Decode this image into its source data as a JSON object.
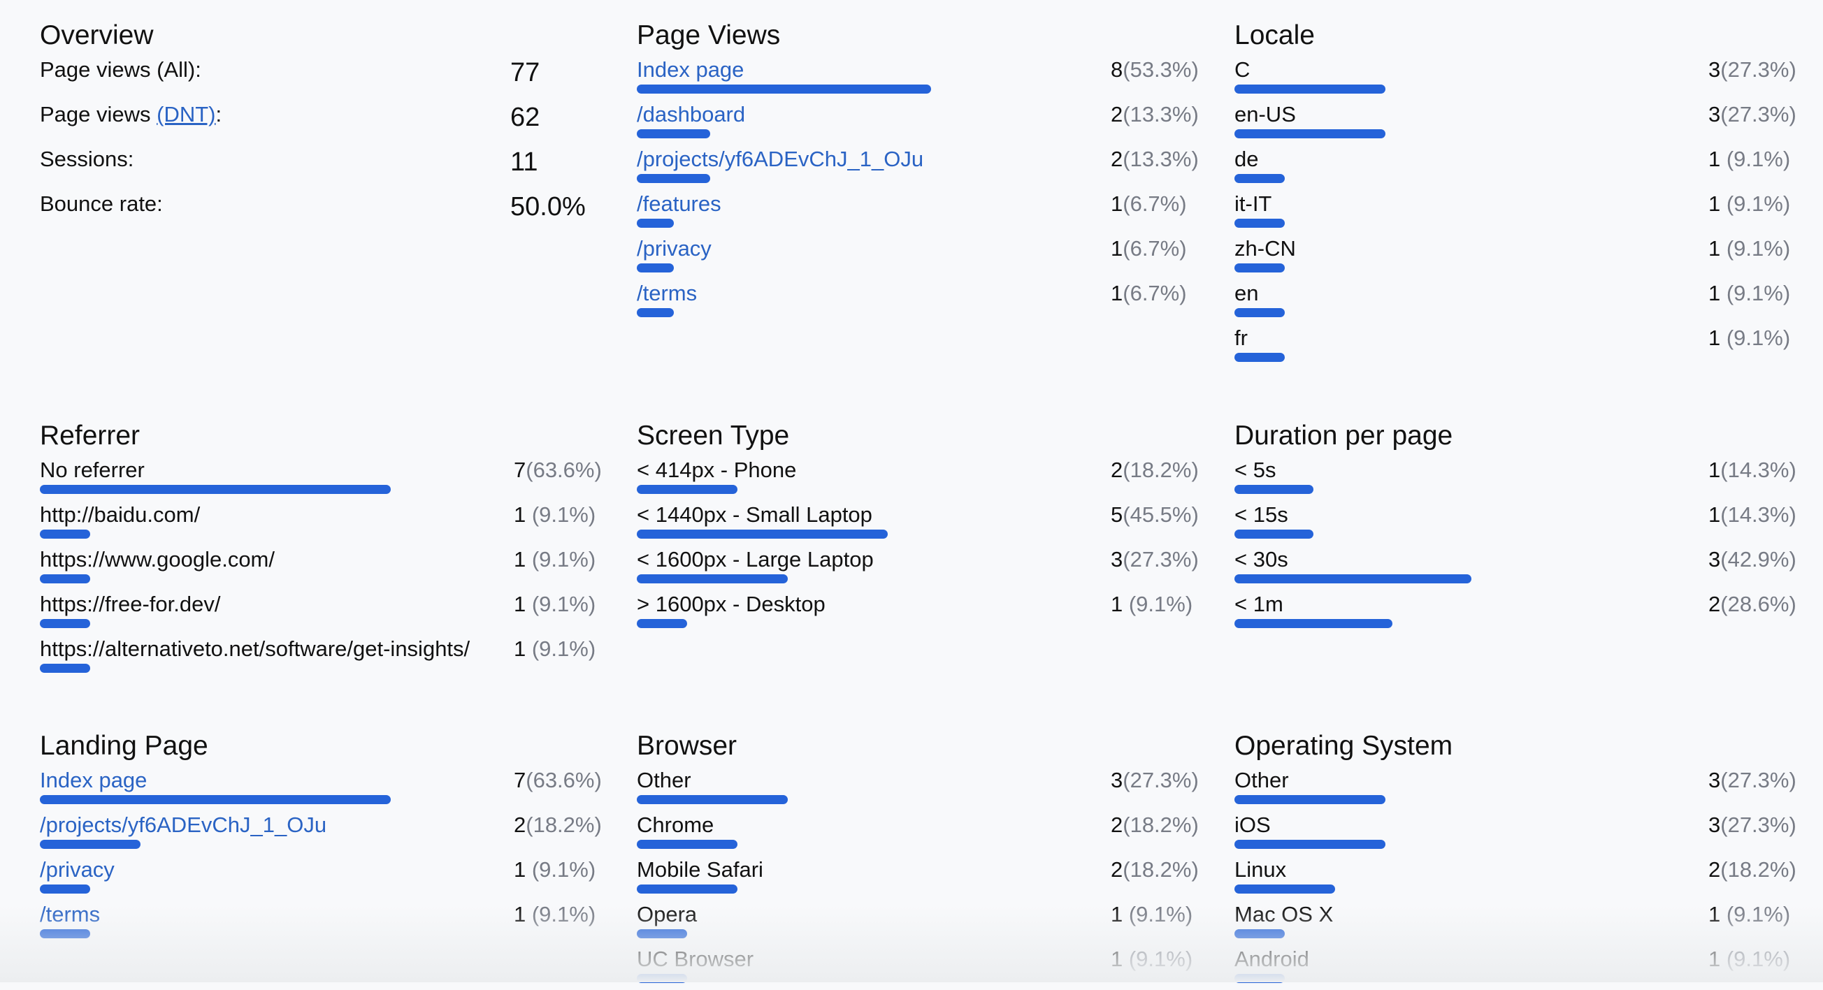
{
  "colors": {
    "bar": "#2563d9",
    "link": "#2a63c4",
    "percent": "#777b85"
  },
  "overview": {
    "title": "Overview",
    "rows": [
      {
        "label": "Page views (All):",
        "value": "77"
      },
      {
        "label_prefix": "Page views ",
        "label_link": "(DNT)",
        "label_suffix": ":",
        "value": "62"
      },
      {
        "label": "Sessions:",
        "value": "11"
      },
      {
        "label": "Bounce rate:",
        "value": "50.0%"
      }
    ]
  },
  "sections": [
    {
      "title": "Page Views",
      "link": true,
      "items": [
        {
          "label": "Index page",
          "count": "8",
          "pct": "(53.3%)",
          "value": 53.3
        },
        {
          "label": "/dashboard",
          "count": "2",
          "pct": "(13.3%)",
          "value": 13.3
        },
        {
          "label": "/projects/yf6ADEvChJ_1_OJu",
          "count": "2",
          "pct": "(13.3%)",
          "value": 13.3
        },
        {
          "label": "/features",
          "count": "1",
          "pct": "(6.7%)",
          "value": 6.7
        },
        {
          "label": "/privacy",
          "count": "1",
          "pct": "(6.7%)",
          "value": 6.7
        },
        {
          "label": "/terms",
          "count": "1",
          "pct": "(6.7%)",
          "value": 6.7
        }
      ]
    },
    {
      "title": "Locale",
      "link": false,
      "items": [
        {
          "label": "C",
          "count": "3",
          "pct": "(27.3%)",
          "value": 27.3
        },
        {
          "label": "en-US",
          "count": "3",
          "pct": "(27.3%)",
          "value": 27.3
        },
        {
          "label": "de",
          "count": "1",
          "pct": " (9.1%)",
          "value": 9.1
        },
        {
          "label": "it-IT",
          "count": "1",
          "pct": " (9.1%)",
          "value": 9.1
        },
        {
          "label": "zh-CN",
          "count": "1",
          "pct": " (9.1%)",
          "value": 9.1
        },
        {
          "label": "en",
          "count": "1",
          "pct": " (9.1%)",
          "value": 9.1
        },
        {
          "label": "fr",
          "count": "1",
          "pct": " (9.1%)",
          "value": 9.1
        }
      ]
    },
    {
      "title": "Referrer",
      "link": false,
      "items": [
        {
          "label": "No referrer",
          "count": "7",
          "pct": "(63.6%)",
          "value": 63.6
        },
        {
          "label": "http://baidu.com/",
          "count": "1",
          "pct": " (9.1%)",
          "value": 9.1
        },
        {
          "label": "https://www.google.com/",
          "count": "1",
          "pct": " (9.1%)",
          "value": 9.1
        },
        {
          "label": "https://free-for.dev/",
          "count": "1",
          "pct": " (9.1%)",
          "value": 9.1
        },
        {
          "label": "https://alternativeto.net/software/get-insights/",
          "count": "1",
          "pct": " (9.1%)",
          "value": 9.1
        }
      ]
    },
    {
      "title": "Screen Type",
      "link": false,
      "items": [
        {
          "label": "< 414px - Phone",
          "count": "2",
          "pct": "(18.2%)",
          "value": 18.2
        },
        {
          "label": "< 1440px - Small Laptop",
          "count": "5",
          "pct": "(45.5%)",
          "value": 45.5
        },
        {
          "label": "< 1600px - Large Laptop",
          "count": "3",
          "pct": "(27.3%)",
          "value": 27.3
        },
        {
          "label": "> 1600px - Desktop",
          "count": "1",
          "pct": " (9.1%)",
          "value": 9.1
        }
      ]
    },
    {
      "title": "Duration per page",
      "link": false,
      "items": [
        {
          "label": "< 5s",
          "count": "1",
          "pct": "(14.3%)",
          "value": 14.3
        },
        {
          "label": "< 15s",
          "count": "1",
          "pct": "(14.3%)",
          "value": 14.3
        },
        {
          "label": "< 30s",
          "count": "3",
          "pct": "(42.9%)",
          "value": 42.9
        },
        {
          "label": "< 1m",
          "count": "2",
          "pct": "(28.6%)",
          "value": 28.6
        }
      ]
    },
    {
      "title": "Landing Page",
      "link": true,
      "items": [
        {
          "label": "Index page",
          "count": "7",
          "pct": "(63.6%)",
          "value": 63.6
        },
        {
          "label": "/projects/yf6ADEvChJ_1_OJu",
          "count": "2",
          "pct": "(18.2%)",
          "value": 18.2
        },
        {
          "label": "/privacy",
          "count": "1",
          "pct": " (9.1%)",
          "value": 9.1
        },
        {
          "label": "/terms",
          "count": "1",
          "pct": " (9.1%)",
          "value": 9.1
        }
      ]
    },
    {
      "title": "Browser",
      "link": false,
      "items": [
        {
          "label": "Other",
          "count": "3",
          "pct": "(27.3%)",
          "value": 27.3
        },
        {
          "label": "Chrome",
          "count": "2",
          "pct": "(18.2%)",
          "value": 18.2
        },
        {
          "label": "Mobile Safari",
          "count": "2",
          "pct": "(18.2%)",
          "value": 18.2
        },
        {
          "label": "Opera",
          "count": "1",
          "pct": " (9.1%)",
          "value": 9.1
        },
        {
          "label": "UC Browser",
          "count": "1",
          "pct": " (9.1%)",
          "value": 9.1
        }
      ]
    },
    {
      "title": "Operating System",
      "link": false,
      "items": [
        {
          "label": "Other",
          "count": "3",
          "pct": "(27.3%)",
          "value": 27.3
        },
        {
          "label": "iOS",
          "count": "3",
          "pct": "(27.3%)",
          "value": 27.3
        },
        {
          "label": "Linux",
          "count": "2",
          "pct": "(18.2%)",
          "value": 18.2
        },
        {
          "label": "Mac OS X",
          "count": "1",
          "pct": " (9.1%)",
          "value": 9.1
        },
        {
          "label": "Android",
          "count": "1",
          "pct": " (9.1%)",
          "value": 9.1
        }
      ]
    }
  ]
}
